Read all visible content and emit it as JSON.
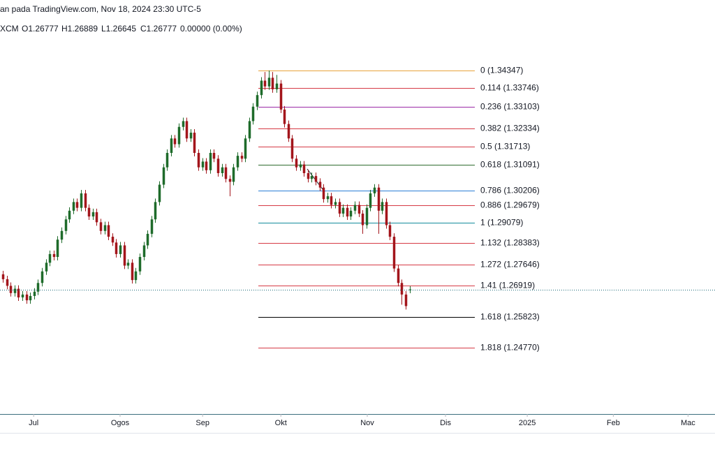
{
  "header": {
    "published": "an pada TradingView.com, Nov 18, 2024 23:30 UTC-5",
    "symbol": "XCM",
    "ohlc": [
      "O1.26777",
      "H1.26889",
      "L1.26645",
      "C1.26777",
      "0.00000 (0.00%)"
    ]
  },
  "chart_data": {
    "type": "candlestick",
    "x": [
      0,
      1,
      2,
      3,
      4,
      5,
      6,
      7,
      8,
      9,
      10,
      11,
      12,
      13,
      14,
      15,
      16,
      17,
      18,
      19,
      20,
      21,
      22,
      23,
      24,
      25,
      26,
      27,
      28,
      29,
      30,
      31,
      32,
      33,
      34,
      35,
      36,
      37,
      38,
      39,
      40,
      41,
      42,
      43,
      44,
      45,
      46,
      47,
      48,
      49,
      50,
      51,
      52,
      53,
      54,
      55,
      56,
      57,
      58,
      59,
      60,
      61,
      62,
      63,
      64,
      65,
      66,
      67,
      68,
      69,
      70,
      71,
      72,
      73,
      74,
      75,
      76,
      77,
      78,
      79,
      80,
      81,
      82,
      83,
      84,
      85,
      86,
      87,
      88,
      89,
      90,
      91,
      92,
      93,
      94,
      95,
      96,
      97,
      98,
      99,
      100,
      101,
      102,
      103,
      104
    ],
    "candles": [
      [
        1.273,
        1.2742,
        1.2701,
        1.2713
      ],
      [
        1.2713,
        1.2725,
        1.2678,
        1.269
      ],
      [
        1.269,
        1.2702,
        1.2653,
        1.2665
      ],
      [
        1.2665,
        1.2692,
        1.2653,
        1.268
      ],
      [
        1.268,
        1.2692,
        1.2638,
        1.265
      ],
      [
        1.265,
        1.2672,
        1.2638,
        1.266
      ],
      [
        1.266,
        1.2672,
        1.2628,
        1.264
      ],
      [
        1.264,
        1.2667,
        1.2628,
        1.2655
      ],
      [
        1.2655,
        1.2682,
        1.2643,
        1.267
      ],
      [
        1.267,
        1.2712,
        1.2658,
        1.27
      ],
      [
        1.27,
        1.2752,
        1.2688,
        1.274
      ],
      [
        1.274,
        1.2782,
        1.2728,
        1.277
      ],
      [
        1.277,
        1.2812,
        1.2758,
        1.28
      ],
      [
        1.28,
        1.2812,
        1.2778,
        1.279
      ],
      [
        1.279,
        1.2862,
        1.2778,
        1.285
      ],
      [
        1.285,
        1.2892,
        1.2838,
        1.288
      ],
      [
        1.288,
        1.2932,
        1.2868,
        1.292
      ],
      [
        1.292,
        1.2962,
        1.2908,
        1.295
      ],
      [
        1.295,
        1.2992,
        1.2938,
        1.298
      ],
      [
        1.298,
        1.2992,
        1.2948,
        1.296
      ],
      [
        1.296,
        1.3022,
        1.2948,
        1.301
      ],
      [
        1.301,
        1.3022,
        1.2948,
        1.296
      ],
      [
        1.296,
        1.2972,
        1.2918,
        1.293
      ],
      [
        1.293,
        1.2957,
        1.2918,
        1.2945
      ],
      [
        1.2945,
        1.2957,
        1.2898,
        1.291
      ],
      [
        1.291,
        1.2922,
        1.2868,
        1.288
      ],
      [
        1.288,
        1.2912,
        1.2868,
        1.29
      ],
      [
        1.29,
        1.2912,
        1.2848,
        1.286
      ],
      [
        1.286,
        1.2872,
        1.2828,
        1.284
      ],
      [
        1.284,
        1.2852,
        1.2788,
        1.28
      ],
      [
        1.28,
        1.2842,
        1.2788,
        1.283
      ],
      [
        1.283,
        1.2842,
        1.2748,
        1.276
      ],
      [
        1.276,
        1.2782,
        1.2748,
        1.277
      ],
      [
        1.277,
        1.2782,
        1.2698,
        1.271
      ],
      [
        1.271,
        1.2752,
        1.2698,
        1.274
      ],
      [
        1.274,
        1.2802,
        1.2728,
        1.279
      ],
      [
        1.279,
        1.2842,
        1.2778,
        1.283
      ],
      [
        1.283,
        1.2882,
        1.2818,
        1.287
      ],
      [
        1.287,
        1.2932,
        1.2858,
        1.292
      ],
      [
        1.292,
        1.2992,
        1.2908,
        1.298
      ],
      [
        1.298,
        1.3052,
        1.2968,
        1.304
      ],
      [
        1.304,
        1.3112,
        1.3028,
        1.31
      ],
      [
        1.31,
        1.3162,
        1.3088,
        1.315
      ],
      [
        1.315,
        1.3212,
        1.3138,
        1.32
      ],
      [
        1.32,
        1.3212,
        1.3168,
        1.318
      ],
      [
        1.318,
        1.3252,
        1.3168,
        1.324
      ],
      [
        1.324,
        1.3272,
        1.3228,
        1.326
      ],
      [
        1.326,
        1.3272,
        1.3188,
        1.32
      ],
      [
        1.32,
        1.3232,
        1.3188,
        1.322
      ],
      [
        1.322,
        1.3232,
        1.3138,
        1.315
      ],
      [
        1.315,
        1.3162,
        1.3088,
        1.31
      ],
      [
        1.31,
        1.3132,
        1.3088,
        1.312
      ],
      [
        1.312,
        1.3132,
        1.3078,
        1.309
      ],
      [
        1.309,
        1.3162,
        1.3078,
        1.315
      ],
      [
        1.315,
        1.3162,
        1.3118,
        1.313
      ],
      [
        1.313,
        1.3142,
        1.3068,
        1.308
      ],
      [
        1.308,
        1.3112,
        1.3068,
        1.31
      ],
      [
        1.31,
        1.3112,
        1.3048,
        1.306
      ],
      [
        1.306,
        1.3072,
        1.3,
        1.305
      ],
      [
        1.305,
        1.3112,
        1.3038,
        1.31
      ],
      [
        1.31,
        1.3152,
        1.3088,
        1.314
      ],
      [
        1.314,
        1.3152,
        1.3118,
        1.313
      ],
      [
        1.313,
        1.3212,
        1.3118,
        1.32
      ],
      [
        1.32,
        1.3272,
        1.3188,
        1.326
      ],
      [
        1.326,
        1.3322,
        1.3248,
        1.331
      ],
      [
        1.331,
        1.3362,
        1.3298,
        1.335
      ],
      [
        1.335,
        1.3412,
        1.3338,
        1.34
      ],
      [
        1.34,
        1.343,
        1.3368,
        1.338
      ],
      [
        1.338,
        1.3435,
        1.3368,
        1.341
      ],
      [
        1.341,
        1.343,
        1.3358,
        1.337
      ],
      [
        1.337,
        1.342,
        1.3358,
        1.339
      ],
      [
        1.339,
        1.3402,
        1.3288,
        1.33
      ],
      [
        1.33,
        1.3312,
        1.3238,
        1.325
      ],
      [
        1.325,
        1.3262,
        1.3188,
        1.32
      ],
      [
        1.32,
        1.3212,
        1.3118,
        1.313
      ],
      [
        1.313,
        1.3142,
        1.3088,
        1.31
      ],
      [
        1.31,
        1.3122,
        1.3088,
        1.311
      ],
      [
        1.311,
        1.3122,
        1.3068,
        1.308
      ],
      [
        1.308,
        1.3092,
        1.3048,
        1.306
      ],
      [
        1.306,
        1.3082,
        1.3048,
        1.307
      ],
      [
        1.307,
        1.3082,
        1.3038,
        1.305
      ],
      [
        1.305,
        1.3062,
        1.3018,
        1.303
      ],
      [
        1.303,
        1.3042,
        1.2978,
        1.299
      ],
      [
        1.299,
        1.3012,
        1.2978,
        1.3
      ],
      [
        1.3,
        1.3012,
        1.2958,
        1.297
      ],
      [
        1.297,
        1.2992,
        1.2958,
        1.298
      ],
      [
        1.298,
        1.2992,
        1.2928,
        1.294
      ],
      [
        1.294,
        1.2972,
        1.2928,
        1.296
      ],
      [
        1.296,
        1.2972,
        1.2918,
        1.293
      ],
      [
        1.293,
        1.2962,
        1.2918,
        1.295
      ],
      [
        1.295,
        1.2982,
        1.2938,
        1.297
      ],
      [
        1.297,
        1.2982,
        1.2928,
        1.294
      ],
      [
        1.294,
        1.2952,
        1.287,
        1.29
      ],
      [
        1.29,
        1.2972,
        1.2888,
        1.296
      ],
      [
        1.296,
        1.3022,
        1.2948,
        1.301
      ],
      [
        1.301,
        1.3042,
        1.2998,
        1.303
      ],
      [
        1.303,
        1.3042,
        1.287,
        1.295
      ],
      [
        1.295,
        1.2992,
        1.2938,
        1.298
      ],
      [
        1.298,
        1.2992,
        1.2888,
        1.29
      ],
      [
        1.29,
        1.2912,
        1.2848,
        1.286
      ],
      [
        1.286,
        1.2872,
        1.2738,
        1.275
      ],
      [
        1.275,
        1.2762,
        1.2688,
        1.27
      ],
      [
        1.27,
        1.2712,
        1.2625,
        1.266
      ],
      [
        1.266,
        1.2672,
        1.2608,
        1.262
      ],
      [
        1.26777,
        1.26889,
        1.26645,
        1.26777
      ]
    ],
    "up_color": "#1e6b2a",
    "down_color": "#a3151b",
    "xlim": [
      -0.7,
      182.1
    ],
    "ylim": [
      1.2249,
      1.3679
    ],
    "xticks": [
      {
        "value": 7.9,
        "label": "Jul"
      },
      {
        "value": 30,
        "label": "Ogos"
      },
      {
        "value": 51.1,
        "label": "Sep"
      },
      {
        "value": 71.1,
        "label": "Okt"
      },
      {
        "value": 93.2,
        "label": "Nov"
      },
      {
        "value": 113.2,
        "label": "Dis"
      },
      {
        "value": 134.1,
        "label": "2025"
      },
      {
        "value": 156.1,
        "label": "Feb"
      },
      {
        "value": 175.2,
        "label": "Mac"
      }
    ],
    "fib_levels": [
      {
        "value": 1.34347,
        "label": "0 (1.34347)",
        "color": "#e8a23a"
      },
      {
        "value": 1.33746,
        "label": "0.114 (1.33746)",
        "color": "#d63a45"
      },
      {
        "value": 1.33103,
        "label": "0.236 (1.33103)",
        "color": "#9b2aa6"
      },
      {
        "value": 1.32334,
        "label": "0.382 (1.32334)",
        "color": "#d63a45"
      },
      {
        "value": 1.31713,
        "label": "0.5 (1.31713)",
        "color": "#d63a45"
      },
      {
        "value": 1.31091,
        "label": "0.618 (1.31091)",
        "color": "#2e6b2f"
      },
      {
        "value": 1.30206,
        "label": "0.786 (1.30206)",
        "color": "#2a7fd6"
      },
      {
        "value": 1.29679,
        "label": "0.886 (1.29679)",
        "color": "#d63a45"
      },
      {
        "value": 1.29079,
        "label": "1 (1.29079)",
        "color": "#128a9c"
      },
      {
        "value": 1.28383,
        "label": "1.132 (1.28383)",
        "color": "#d63a45"
      },
      {
        "value": 1.27646,
        "label": "1.272 (1.27646)",
        "color": "#d63a45"
      },
      {
        "value": 1.26919,
        "label": "1.41 (1.26919)",
        "color": "#d63a45"
      },
      {
        "value": 1.25823,
        "label": "1.618 (1.25823)",
        "color": "#000000"
      },
      {
        "value": 1.2477,
        "label": "1.818 (1.24770)",
        "color": "#d63a45"
      }
    ]
  }
}
